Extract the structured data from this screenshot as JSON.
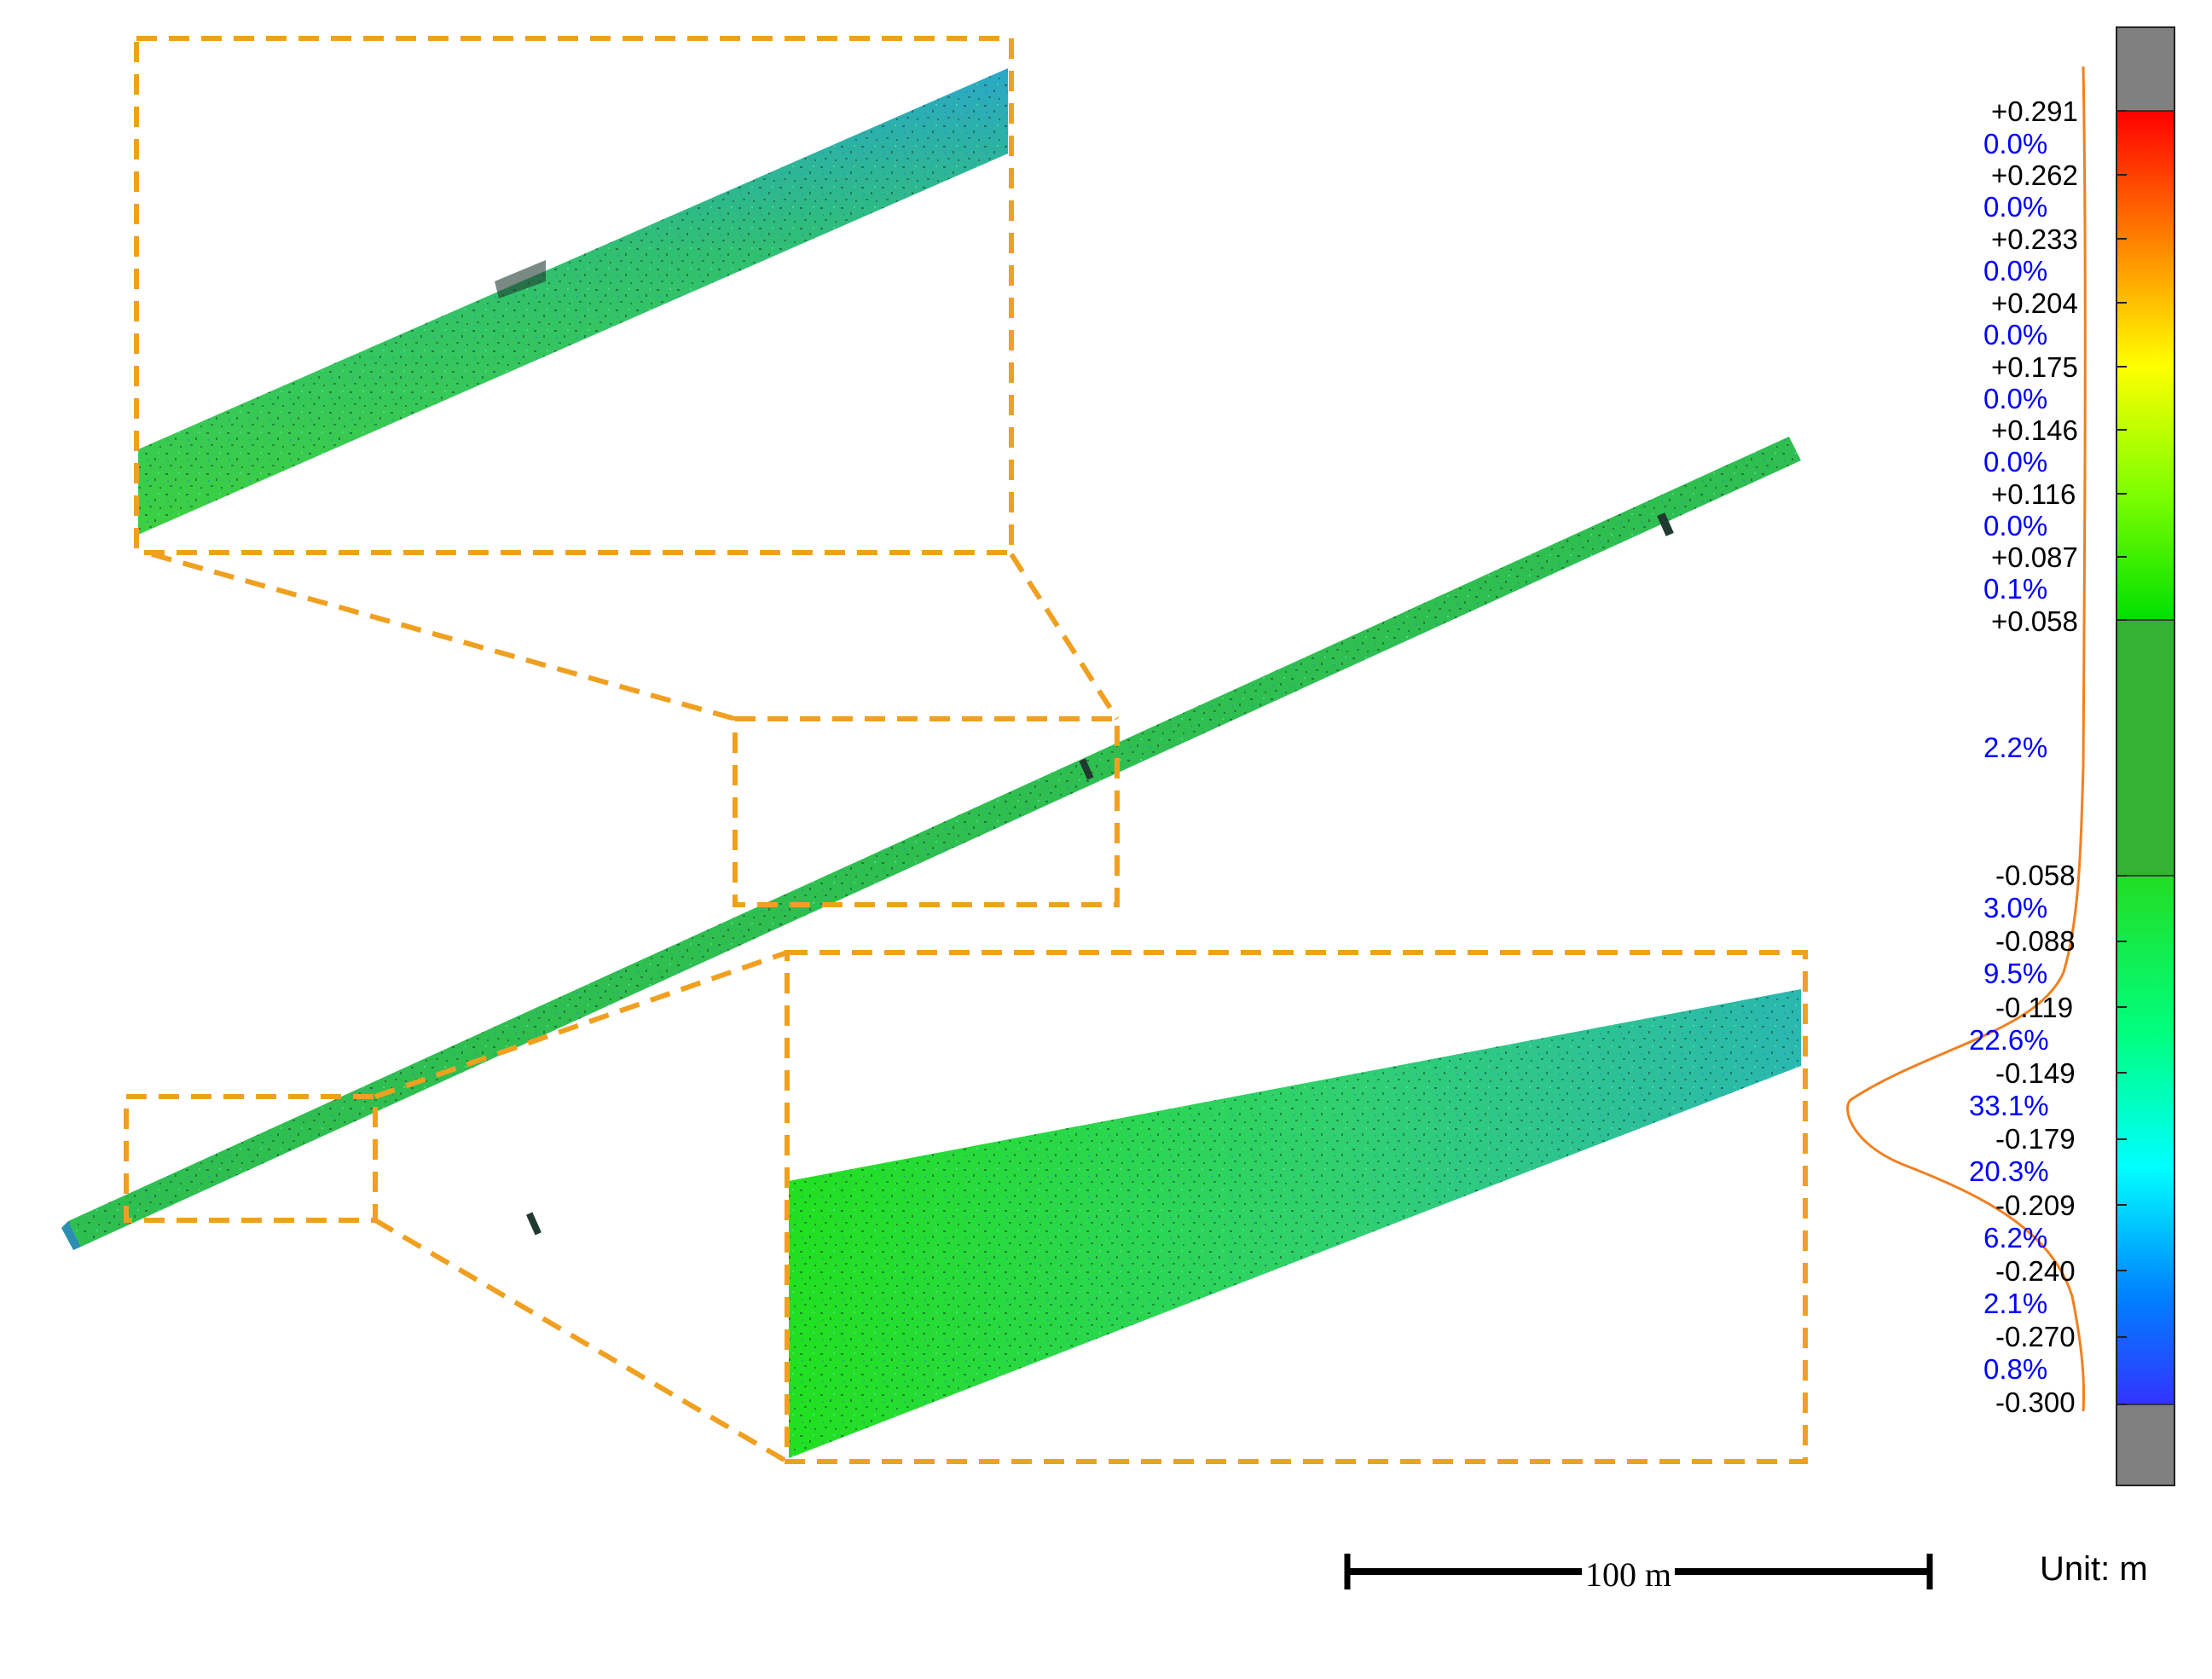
{
  "legend": {
    "values": [
      "+0.291",
      "+0.262",
      "+0.233",
      "+0.204",
      "+0.175",
      "+0.146",
      "+0.116",
      "+0.087",
      "+0.058",
      "-0.058",
      "-0.088",
      "-0.119",
      "-0.149",
      "-0.179",
      "-0.209",
      "-0.240",
      "-0.270",
      "-0.300"
    ],
    "percentages": [
      "0.0%",
      "0.0%",
      "0.0%",
      "0.0%",
      "0.0%",
      "0.0%",
      "0.0%",
      "0.1%",
      "2.2%",
      "3.0%",
      "9.5%",
      "22.6%",
      "33.1%",
      "20.3%",
      "6.2%",
      "2.1%",
      "0.8%"
    ],
    "colors": {
      "out_of_range": "#808080",
      "top_gradient": [
        "#ff0000",
        "#ff7f00",
        "#ffff00",
        "#7fff00",
        "#00e000"
      ],
      "tolerance_band": "#33b233",
      "bottom_gradient": [
        "#22dd22",
        "#00ff7f",
        "#00ffff",
        "#007fff",
        "#3333ff"
      ]
    }
  },
  "scale_bar": {
    "label": "100 m"
  },
  "unit": {
    "label": "Unit:  m"
  },
  "colors": {
    "highlight": "#f0a020",
    "histogram": "#f08020",
    "pole_main": "#2fbf5f",
    "pole_edge": "#2a8fb0"
  }
}
